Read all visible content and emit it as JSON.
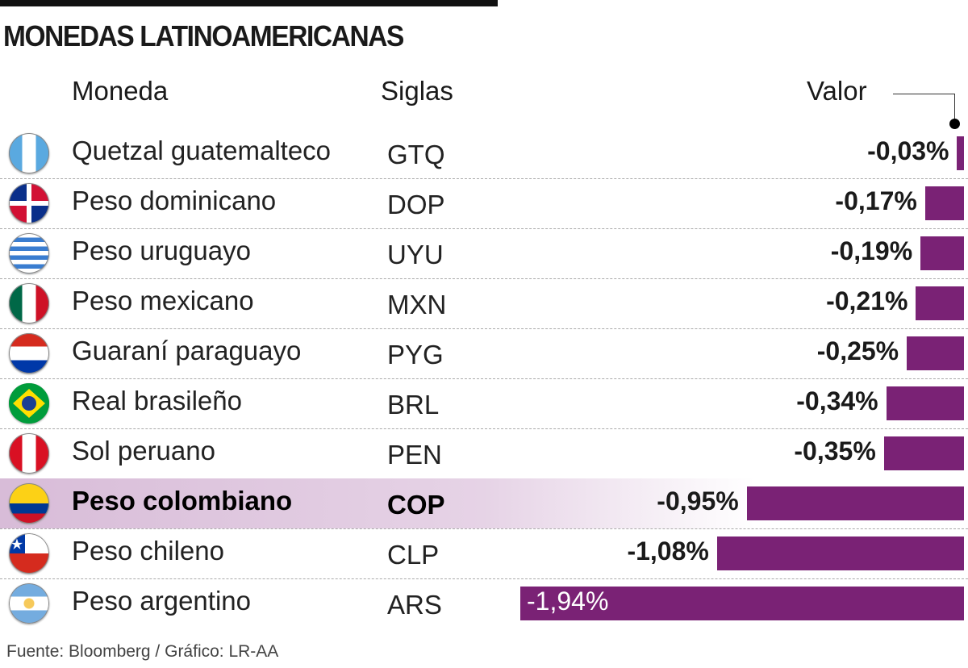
{
  "title": "MONEDAS LATINOAMERICANAS",
  "headers": {
    "currency": "Moneda",
    "code": "Siglas",
    "value": "Valor"
  },
  "footer": "Fuente: Bloomberg / Gráfico: LR-AA",
  "colors": {
    "bar": "#7a2275",
    "highlight": "#d8bcd8"
  },
  "chart_data": {
    "type": "bar",
    "orientation": "horizontal",
    "unit": "%",
    "categories": [
      "Quetzal guatemalteco",
      "Peso dominicano",
      "Peso uruguayo",
      "Peso mexicano",
      "Guaraní paraguayo",
      "Real brasileño",
      "Sol peruano",
      "Peso colombiano",
      "Peso chileno",
      "Peso argentino"
    ],
    "codes": [
      "GTQ",
      "DOP",
      "UYU",
      "MXN",
      "PYG",
      "BRL",
      "PEN",
      "COP",
      "CLP",
      "ARS"
    ],
    "values": [
      -0.03,
      -0.17,
      -0.19,
      -0.21,
      -0.25,
      -0.34,
      -0.35,
      -0.95,
      -1.08,
      -1.94
    ],
    "labels": [
      "-0,03%",
      "-0,17%",
      "-0,19%",
      "-0,21%",
      "-0,25%",
      "-0,34%",
      "-0,35%",
      "-0,95%",
      "-1,08%",
      "-1,94%"
    ],
    "flags": [
      "guatemala-flag-icon",
      "dominican-republic-flag-icon",
      "uruguay-flag-icon",
      "mexico-flag-icon",
      "paraguay-flag-icon",
      "brazil-flag-icon",
      "peru-flag-icon",
      "colombia-flag-icon",
      "chile-flag-icon",
      "argentina-flag-icon"
    ],
    "highlighted": "COP"
  }
}
